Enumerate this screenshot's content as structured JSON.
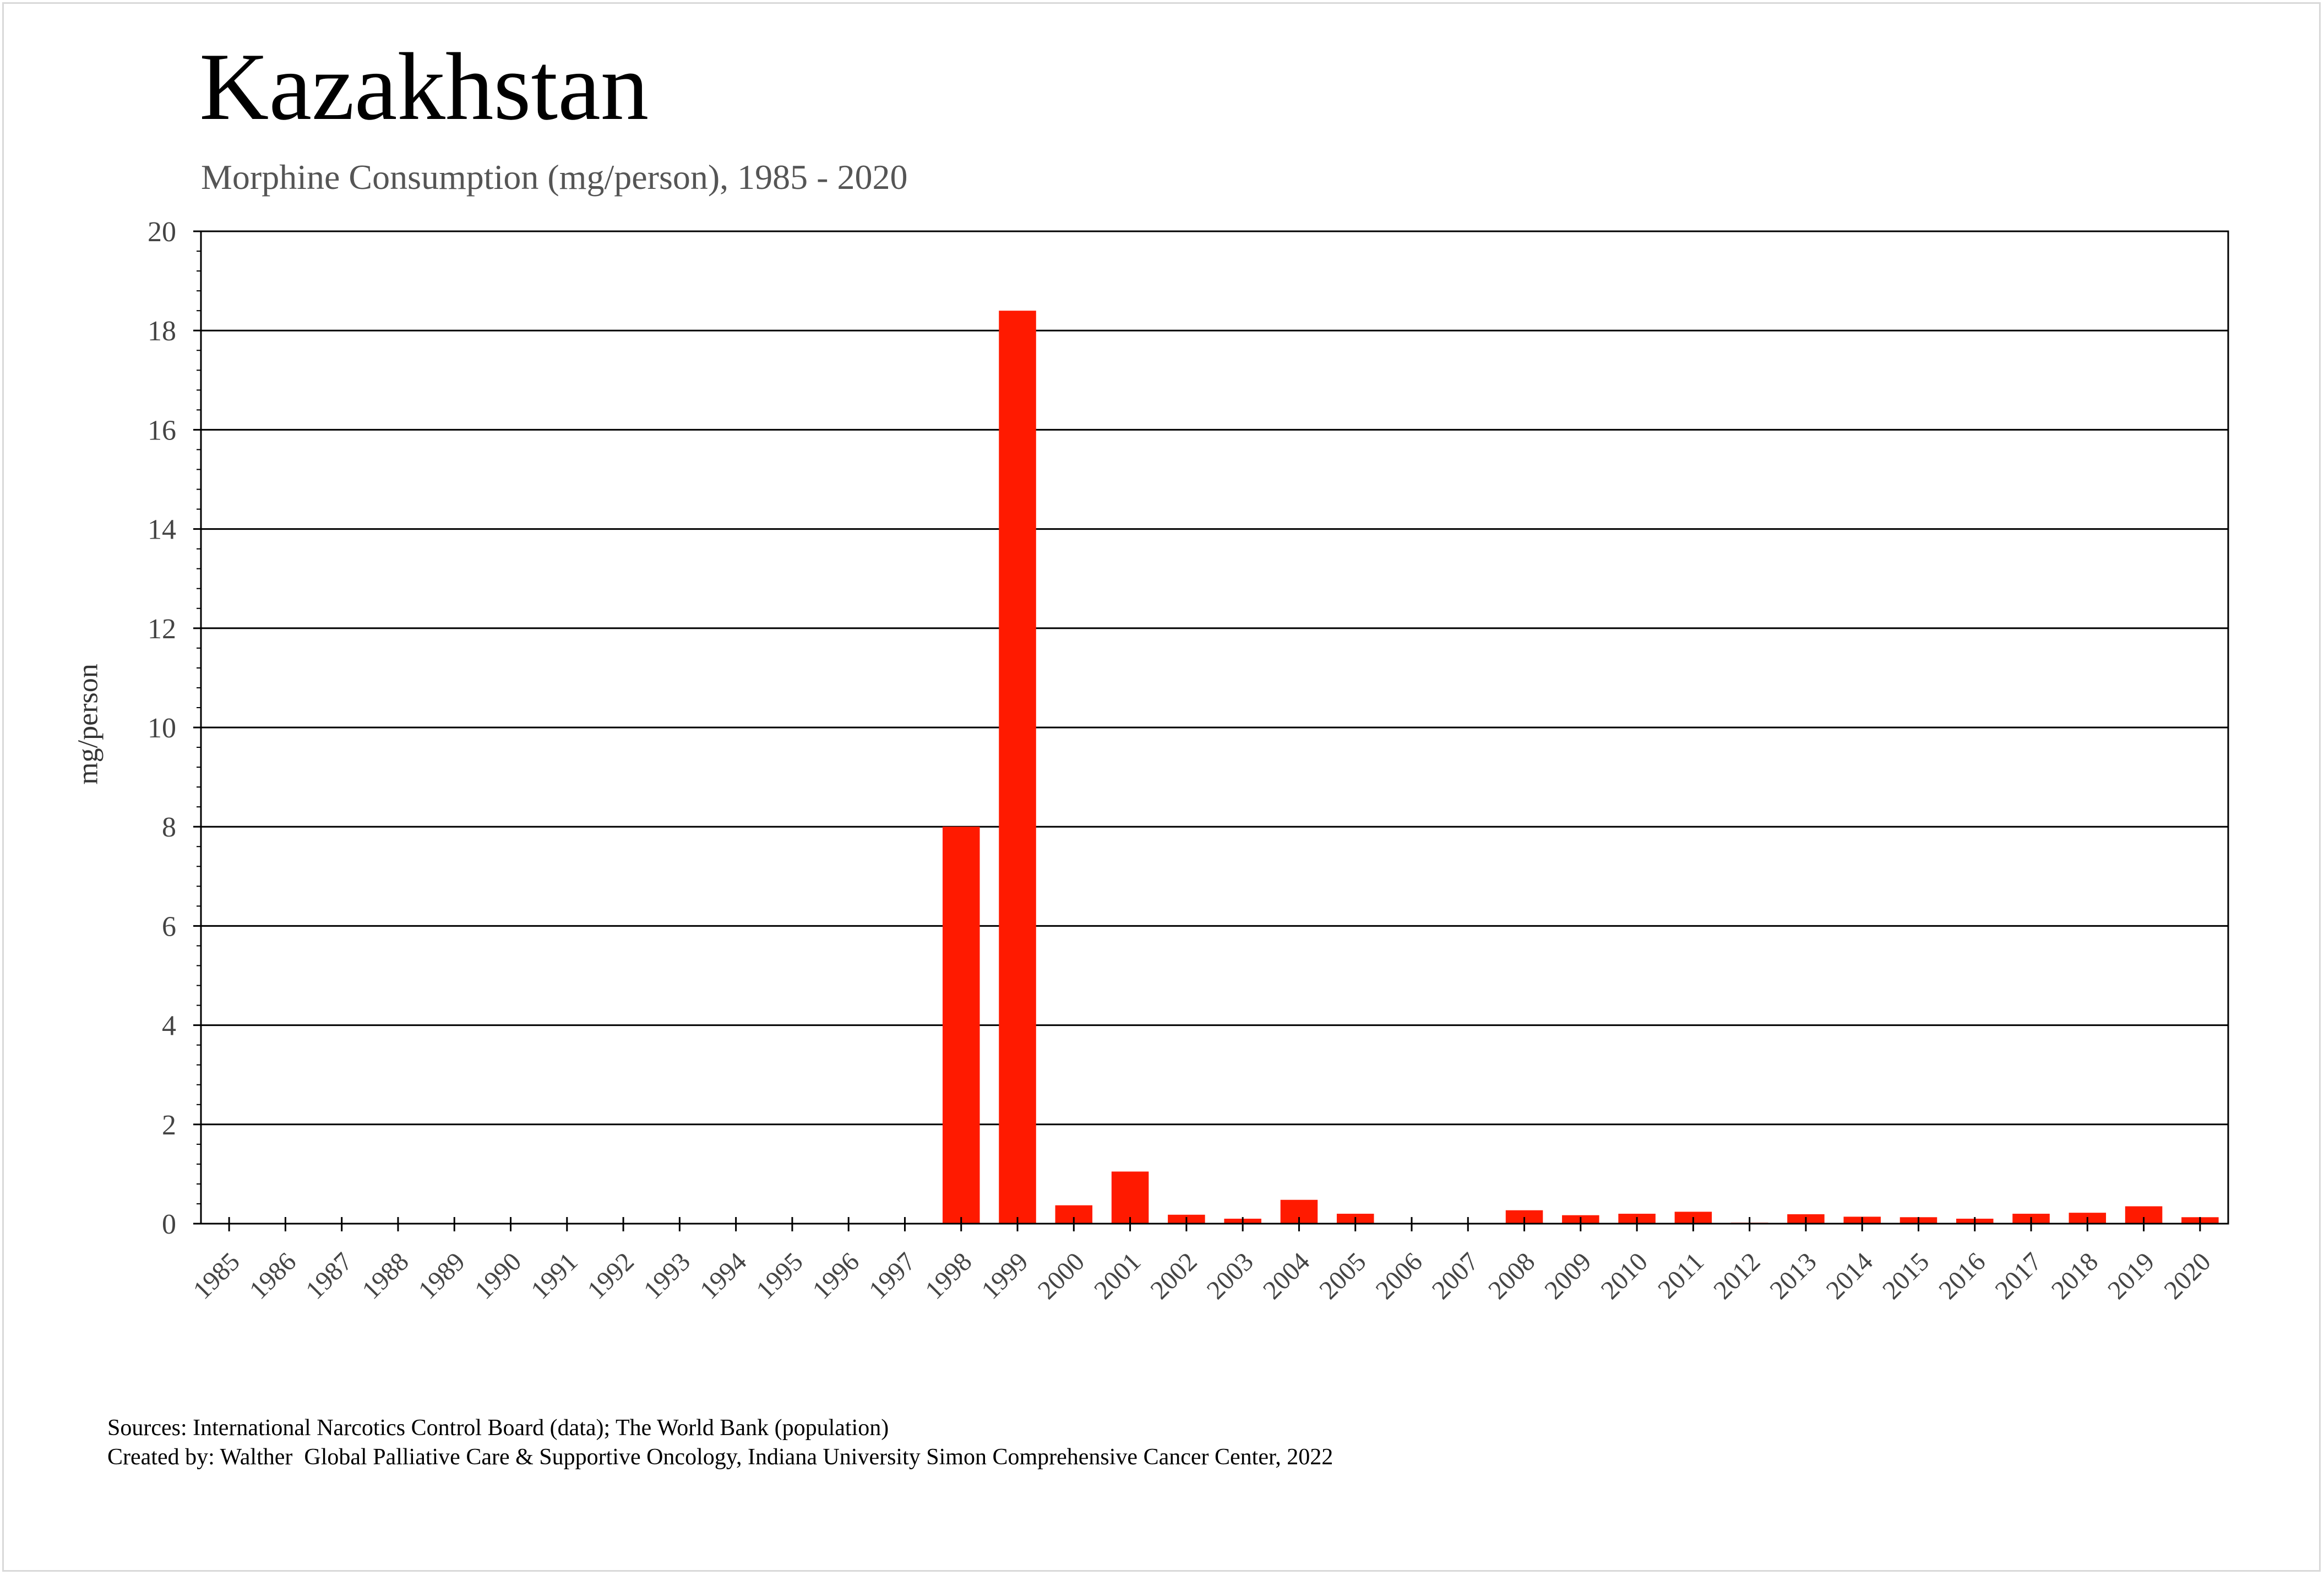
{
  "chart_data": {
    "type": "bar",
    "title": "Kazakhstan",
    "subtitle": "Morphine Consumption (mg/person), 1985 - 2020",
    "ylabel": "mg/person",
    "xlabel": "",
    "ylim": [
      0,
      20
    ],
    "yticks": [
      "0",
      "2",
      "4",
      "6",
      "8",
      "10",
      "12",
      "14",
      "16",
      "18",
      "20"
    ],
    "grid": true,
    "legend": "none",
    "bar_color": "#ff1a00",
    "categories": [
      "1985",
      "1986",
      "1987",
      "1988",
      "1989",
      "1990",
      "1991",
      "1992",
      "1993",
      "1994",
      "1995",
      "1996",
      "1997",
      "1998",
      "1999",
      "2000",
      "2001",
      "2002",
      "2003",
      "2004",
      "2005",
      "2006",
      "2007",
      "2008",
      "2009",
      "2010",
      "2011",
      "2012",
      "2013",
      "2014",
      "2015",
      "2016",
      "2017",
      "2018",
      "2019",
      "2020"
    ],
    "values": [
      0,
      0,
      0,
      0,
      0,
      0,
      0,
      0,
      0,
      0,
      0,
      0,
      0,
      8.0,
      18.4,
      0.37,
      1.05,
      0.18,
      0.1,
      0.48,
      0.2,
      0,
      0,
      0.27,
      0.17,
      0.2,
      0.24,
      0.02,
      0.19,
      0.14,
      0.13,
      0.1,
      0.2,
      0.22,
      0.35,
      0.13
    ]
  },
  "footer": {
    "sources": "Sources: International Narcotics Control Board (data); The World Bank (population)",
    "created_by": "Created by: Walther  Global Palliative Care & Supportive Oncology, Indiana University Simon Comprehensive Cancer Center, 2022"
  }
}
